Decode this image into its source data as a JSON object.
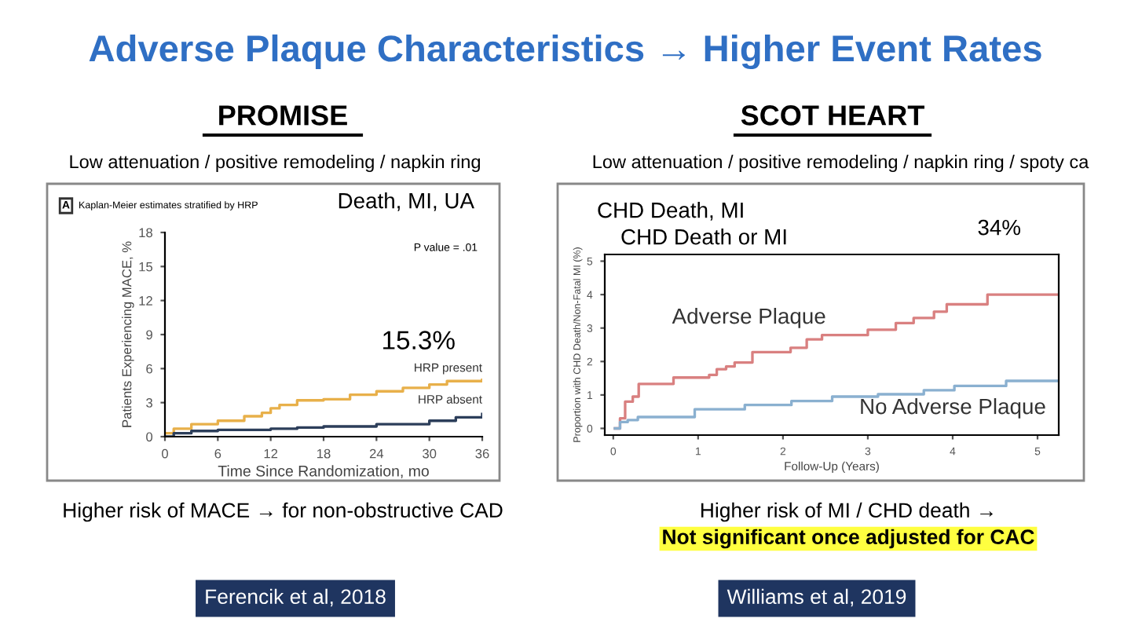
{
  "chart_data": [
    {
      "type": "step",
      "title": "PROMISE",
      "subtitle": "Low attenuation / positive remodeling / napkin ring",
      "xlabel": "Time Since Randomization, mo",
      "ylabel": "Patients Experiencing MACE, %",
      "xlim": [
        0,
        36
      ],
      "ylim": [
        0,
        18
      ],
      "xticks": [
        0,
        6,
        12,
        18,
        24,
        30,
        36
      ],
      "yticks": [
        0,
        3,
        6,
        9,
        12,
        15,
        18
      ],
      "legend": false,
      "grid": false,
      "annotations": [
        "Adverse Plaque Characteristics → Higher Event Rates",
        "A",
        "Kaplan-Meier estimates stratified by HRP",
        "Death, MI, UA",
        "P value = .01",
        "15.3%",
        "Higher risk of MACE → for non-obstructive CAD",
        "Ferencik et al, 2018"
      ],
      "series": [
        {
          "name": "HRP present",
          "color": "#e8b04a",
          "x": [
            0,
            1,
            3,
            6,
            9,
            11,
            12,
            13,
            15,
            18,
            21,
            24,
            27,
            30,
            32,
            36
          ],
          "values": [
            0.3,
            0.7,
            1.1,
            1.4,
            1.8,
            2.1,
            2.5,
            2.8,
            3.2,
            3.3,
            3.7,
            4.0,
            4.3,
            4.6,
            4.9,
            5.0
          ]
        },
        {
          "name": "HRP absent",
          "color": "#2c3e5a",
          "x": [
            0,
            1,
            3,
            6,
            12,
            15,
            18,
            24,
            30,
            33,
            36
          ],
          "values": [
            0,
            0.3,
            0.5,
            0.6,
            0.7,
            0.8,
            0.9,
            1.1,
            1.4,
            1.7,
            2.0
          ]
        }
      ]
    },
    {
      "type": "step",
      "title": "SCOT HEART",
      "subtitle": "Low attenuation / positive remodeling / napkin ring / spoty ca",
      "xlabel": "Follow-Up (Years)",
      "ylabel": "Proportion with CHD Death/Non-Fatal MI (%)",
      "xlim": [
        -0.1,
        5.25
      ],
      "ylim": [
        -0.2,
        5.2
      ],
      "xticks": [
        0,
        1,
        2,
        3,
        4,
        5
      ],
      "yticks": [
        0,
        1,
        2,
        3,
        4,
        5
      ],
      "legend": false,
      "grid": false,
      "annotations": [
        "CHD Death, MI",
        "CHD Death or MI",
        "34%",
        "Higher risk of MI / CHD death →",
        "Not significant once adjusted for CAC",
        "Williams et al, 2019"
      ],
      "series": [
        {
          "name": "Adverse Plaque",
          "color": "#d98080",
          "x": [
            0.02,
            0.08,
            0.14,
            0.23,
            0.3,
            0.71,
            1.13,
            1.22,
            1.33,
            1.43,
            1.64,
            2.09,
            2.28,
            2.46,
            3.0,
            3.33,
            3.54,
            3.78,
            3.93,
            4.41,
            5.25
          ],
          "values": [
            0,
            0.3,
            0.8,
            0.95,
            1.33,
            1.52,
            1.6,
            1.77,
            1.85,
            1.97,
            2.28,
            2.41,
            2.66,
            2.79,
            2.95,
            3.15,
            3.3,
            3.49,
            3.71,
            4.0,
            4.0
          ]
        },
        {
          "name": "No Adverse Plaque",
          "color": "#8ab0d0",
          "x": [
            0.02,
            0.08,
            0.17,
            0.29,
            0.96,
            1.55,
            2.1,
            2.58,
            3.12,
            3.66,
            4.02,
            4.63,
            5.25
          ],
          "values": [
            0,
            0.19,
            0.25,
            0.34,
            0.57,
            0.7,
            0.82,
            0.95,
            1.02,
            1.14,
            1.27,
            1.42,
            1.42
          ]
        }
      ]
    }
  ]
}
